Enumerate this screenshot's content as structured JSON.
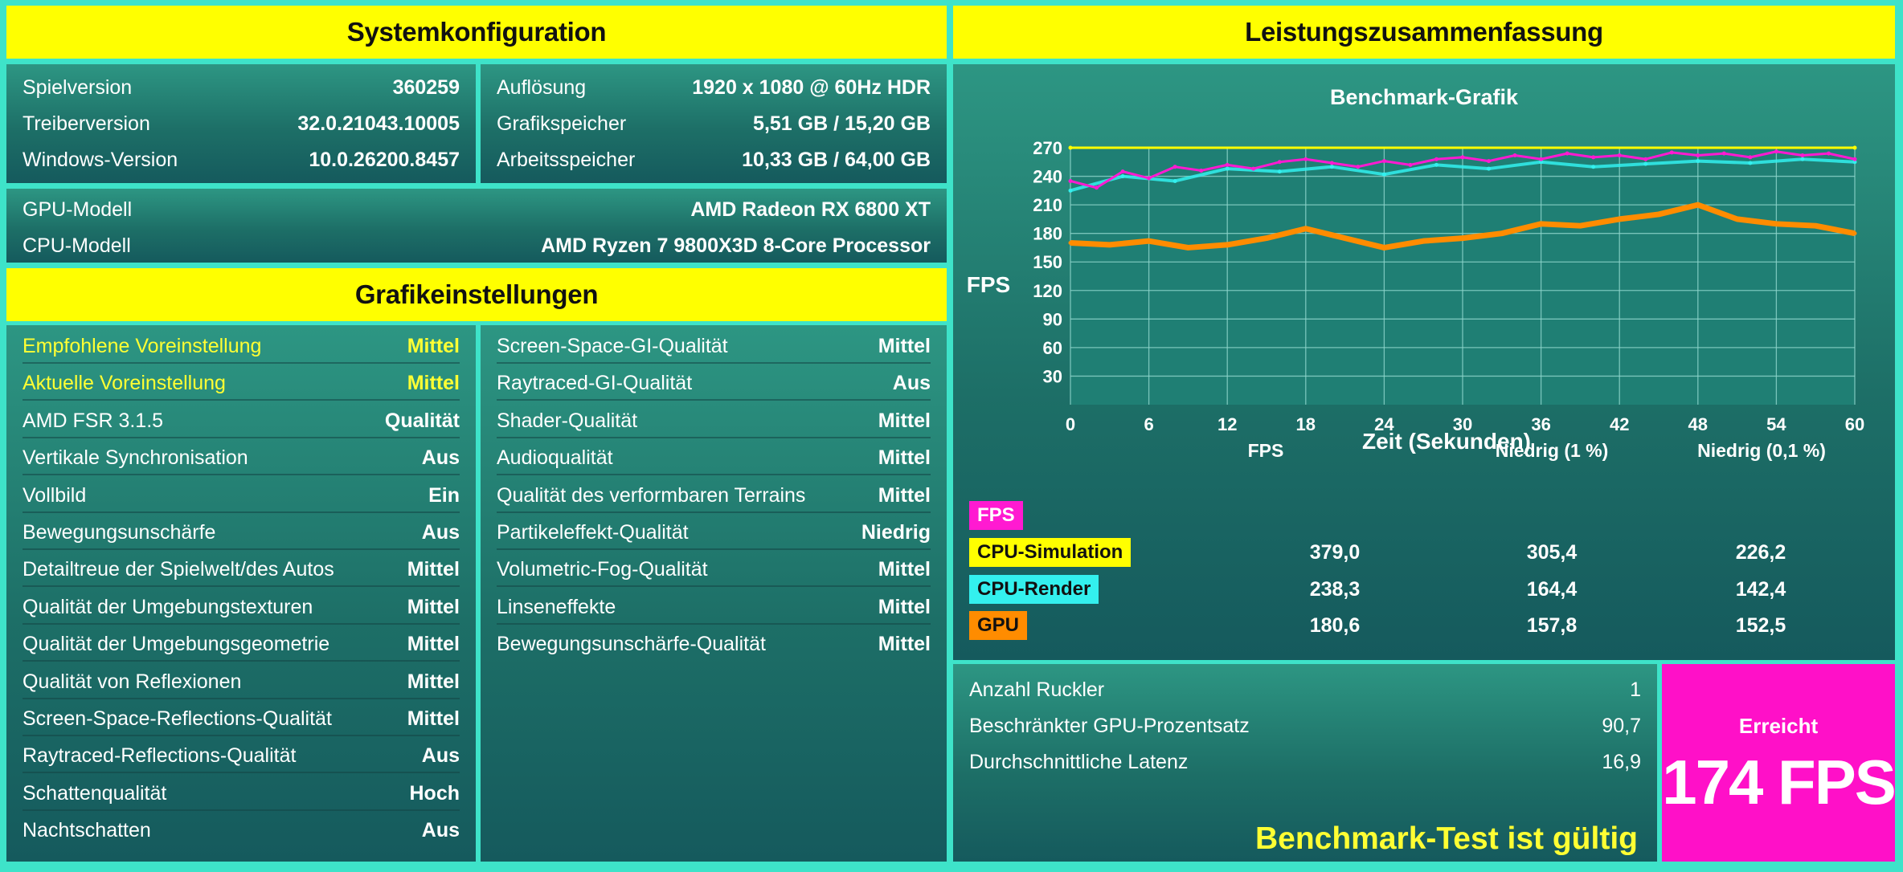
{
  "system": {
    "title": "Systemkonfiguration",
    "left": [
      {
        "label": "Spielversion",
        "value": "360259"
      },
      {
        "label": "Treiberversion",
        "value": "32.0.21043.10005"
      },
      {
        "label": "Windows-Version",
        "value": "10.0.26200.8457"
      }
    ],
    "right": [
      {
        "label": "Auflösung",
        "value": "1920 x 1080 @ 60Hz HDR"
      },
      {
        "label": "Grafikspeicher",
        "value": "5,51 GB / 15,20 GB"
      },
      {
        "label": "Arbeitsspeicher",
        "value": "10,33 GB / 64,00 GB"
      }
    ],
    "hardware": [
      {
        "label": "GPU-Modell",
        "value": "AMD Radeon RX 6800 XT"
      },
      {
        "label": "CPU-Modell",
        "value": "AMD Ryzen 7 9800X3D 8-Core Processor"
      }
    ]
  },
  "graphics": {
    "title": "Grafikeinstellungen",
    "left": [
      {
        "label": "Empfohlene Voreinstellung",
        "value": "Mittel",
        "highlight": true
      },
      {
        "label": "Aktuelle Voreinstellung",
        "value": "Mittel",
        "highlight": true
      },
      {
        "label": "AMD FSR 3.1.5",
        "value": "Qualität"
      },
      {
        "label": "Vertikale Synchronisation",
        "value": "Aus"
      },
      {
        "label": "Vollbild",
        "value": "Ein"
      },
      {
        "label": "Bewegungsunschärfe",
        "value": "Aus"
      },
      {
        "label": "Detailtreue der Spielwelt/des Autos",
        "value": "Mittel"
      },
      {
        "label": "Qualität der Umgebungstexturen",
        "value": "Mittel"
      },
      {
        "label": "Qualität der Umgebungsgeometrie",
        "value": "Mittel"
      },
      {
        "label": "Qualität von Reflexionen",
        "value": "Mittel"
      },
      {
        "label": "Screen-Space-Reflections-Qualität",
        "value": "Mittel"
      },
      {
        "label": "Raytraced-Reflections-Qualität",
        "value": "Aus"
      },
      {
        "label": "Schattenqualität",
        "value": "Hoch"
      },
      {
        "label": "Nachtschatten",
        "value": "Aus"
      }
    ],
    "right": [
      {
        "label": "Screen-Space-GI-Qualität",
        "value": "Mittel"
      },
      {
        "label": "Raytraced-GI-Qualität",
        "value": "Aus"
      },
      {
        "label": "Shader-Qualität",
        "value": "Mittel"
      },
      {
        "label": "Audioqualität",
        "value": "Mittel"
      },
      {
        "label": "Qualität des verformbaren Terrains",
        "value": "Mittel"
      },
      {
        "label": "Partikeleffekt-Qualität",
        "value": "Niedrig"
      },
      {
        "label": "Volumetric-Fog-Qualität",
        "value": "Mittel"
      },
      {
        "label": "Linseneffekte",
        "value": "Mittel"
      },
      {
        "label": "Bewegungsunschärfe-Qualität",
        "value": "Mittel"
      }
    ]
  },
  "performance": {
    "title": "Leistungszusammenfassung",
    "chart_title": "Benchmark-Grafik",
    "table": {
      "headers": [
        "FPS",
        "FPS",
        "Niedrig (1 %)",
        "Niedrig (0,1 %)"
      ],
      "rows": [
        {
          "label": "CPU-Simulation",
          "fps": "379,0",
          "low1": "305,4",
          "low01": "226,2",
          "color": "#ffff00"
        },
        {
          "label": "CPU-Render",
          "fps": "238,3",
          "low1": "164,4",
          "low01": "142,4",
          "color": "#33f0ee"
        },
        {
          "label": "GPU",
          "fps": "180,6",
          "low1": "157,8",
          "low01": "152,5",
          "color": "#ff8c00"
        }
      ],
      "fps_chip_color": "#ff1ad1"
    },
    "stats": [
      {
        "label": "Anzahl Ruckler",
        "value": "1"
      },
      {
        "label": "Beschränkter GPU-Prozentsatz",
        "value": "90,7"
      },
      {
        "label": "Durchschnittliche Latenz",
        "value": "16,9"
      }
    ],
    "valid_text": "Benchmark-Test ist gültig",
    "result_label": "Erreicht",
    "result_value": "174 FPS"
  },
  "chart_data": {
    "type": "line",
    "title": "Benchmark-Grafik",
    "xlabel": "Zeit (Sekunden)",
    "ylabel": "FPS",
    "xlim": [
      0,
      60
    ],
    "ylim": [
      0,
      270
    ],
    "xticks": [
      0,
      6,
      12,
      18,
      24,
      30,
      36,
      42,
      48,
      54,
      60
    ],
    "yticks": [
      30,
      60,
      90,
      120,
      150,
      180,
      210,
      240,
      270
    ],
    "grid": true,
    "series": [
      {
        "name": "CPU-Simulation",
        "color": "#ffff00",
        "x": [
          0,
          60
        ],
        "values": [
          270,
          270
        ]
      },
      {
        "name": "FPS",
        "color": "#ff1ad1",
        "x": [
          0,
          2,
          4,
          6,
          8,
          10,
          12,
          14,
          16,
          18,
          20,
          22,
          24,
          26,
          28,
          30,
          32,
          34,
          36,
          38,
          40,
          42,
          44,
          46,
          48,
          50,
          52,
          54,
          56,
          58,
          60
        ],
        "values": [
          235,
          228,
          245,
          238,
          250,
          246,
          252,
          248,
          255,
          258,
          254,
          250,
          256,
          252,
          258,
          260,
          256,
          262,
          258,
          264,
          260,
          262,
          258,
          265,
          262,
          264,
          260,
          266,
          262,
          264,
          258
        ]
      },
      {
        "name": "CPU-Render",
        "color": "#33f0ee",
        "x": [
          0,
          4,
          8,
          12,
          16,
          20,
          24,
          28,
          32,
          36,
          40,
          44,
          48,
          52,
          56,
          60
        ],
        "values": [
          225,
          240,
          235,
          248,
          245,
          250,
          242,
          252,
          248,
          255,
          250,
          253,
          256,
          254,
          258,
          255
        ]
      },
      {
        "name": "GPU",
        "color": "#ff8c00",
        "x": [
          0,
          3,
          6,
          9,
          12,
          15,
          18,
          21,
          24,
          27,
          30,
          33,
          36,
          39,
          42,
          45,
          48,
          51,
          54,
          57,
          60
        ],
        "values": [
          170,
          168,
          172,
          165,
          168,
          175,
          185,
          175,
          165,
          172,
          175,
          180,
          190,
          188,
          195,
          200,
          210,
          195,
          190,
          188,
          180
        ]
      }
    ]
  }
}
